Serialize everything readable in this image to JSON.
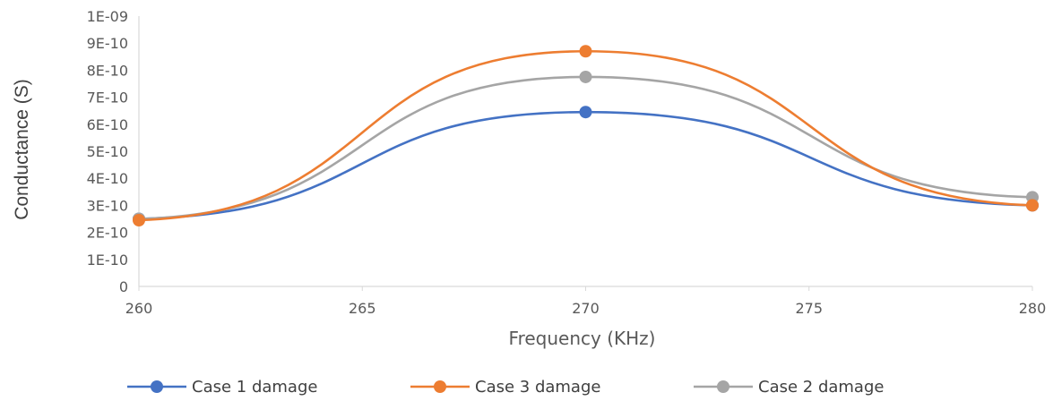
{
  "chart_data": {
    "type": "line",
    "xlabel": "Frequency (KHz)",
    "ylabel": "Conductance (S)",
    "xlim": [
      260,
      280
    ],
    "ylim": [
      0,
      1e-09
    ],
    "x_ticks": [
      260,
      265,
      270,
      275,
      280
    ],
    "x_tick_labels": [
      "260",
      "265",
      "270",
      "275",
      "280"
    ],
    "y_ticks": [
      0,
      1e-10,
      2e-10,
      3e-10,
      4e-10,
      5e-10,
      6e-10,
      7e-10,
      8e-10,
      9e-10,
      1e-09
    ],
    "y_tick_labels": [
      "0",
      "1E-10",
      "2E-10",
      "3E-10",
      "4E-10",
      "5E-10",
      "6E-10",
      "7E-10",
      "8E-10",
      "9E-10",
      "1E-09"
    ],
    "grid": false,
    "legend_position": "bottom",
    "x": [
      260,
      270,
      280
    ],
    "series": [
      {
        "name": "Case 1 damage",
        "color": "#4472C4",
        "values": [
          2.5e-10,
          6.45e-10,
          3e-10
        ]
      },
      {
        "name": "Case 3 damage",
        "color": "#ED7D31",
        "values": [
          2.45e-10,
          8.7e-10,
          3e-10
        ]
      },
      {
        "name": "Case 2 damage",
        "color": "#A5A5A5",
        "values": [
          2.5e-10,
          7.75e-10,
          3.3e-10
        ]
      }
    ]
  }
}
